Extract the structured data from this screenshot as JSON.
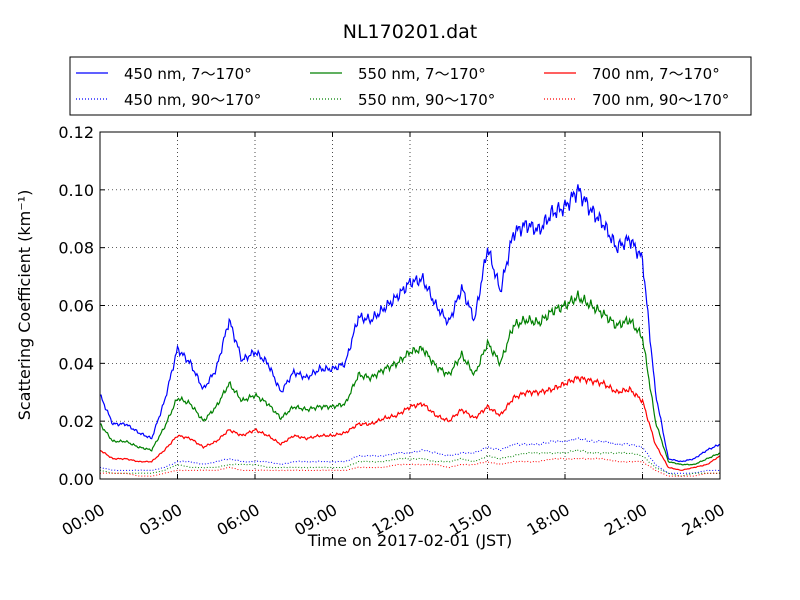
{
  "chart_data": {
    "type": "line",
    "title": "NL170201.dat",
    "xlabel": "Time on 2017-02-01 (JST)",
    "ylabel": "Scattering Coefficient (km⁻¹)",
    "xlim": [
      0,
      24
    ],
    "ylim": [
      0,
      0.12
    ],
    "x_ticks": [
      "00:00",
      "03:00",
      "06:00",
      "09:00",
      "12:00",
      "15:00",
      "18:00",
      "21:00",
      "24:00"
    ],
    "y_ticks": [
      "0.00",
      "0.02",
      "0.04",
      "0.06",
      "0.08",
      "0.10",
      "0.12"
    ],
    "grid": true,
    "legend_position": "top",
    "x_unit": "hours",
    "x": [
      0,
      0.5,
      1,
      1.5,
      2,
      2.5,
      3,
      3.5,
      4,
      4.5,
      5,
      5.5,
      6,
      6.5,
      7,
      7.5,
      8,
      8.5,
      9,
      9.5,
      10,
      10.5,
      11,
      11.5,
      12,
      12.5,
      13,
      13.5,
      14,
      14.5,
      15,
      15.5,
      16,
      16.5,
      17,
      17.5,
      18,
      18.5,
      19,
      19.5,
      20,
      20.5,
      21,
      21.5,
      22,
      22.5,
      23,
      23.5,
      24
    ],
    "series": [
      {
        "name": "450 nm, 7～170°",
        "color": "#0000ff",
        "style": "solid",
        "values": [
          0.029,
          0.019,
          0.019,
          0.016,
          0.014,
          0.027,
          0.045,
          0.04,
          0.031,
          0.038,
          0.055,
          0.041,
          0.044,
          0.04,
          0.03,
          0.037,
          0.035,
          0.038,
          0.038,
          0.04,
          0.056,
          0.055,
          0.059,
          0.063,
          0.068,
          0.069,
          0.06,
          0.054,
          0.066,
          0.055,
          0.08,
          0.065,
          0.085,
          0.088,
          0.086,
          0.092,
          0.094,
          0.1,
          0.093,
          0.088,
          0.08,
          0.083,
          0.076,
          0.03,
          0.007,
          0.006,
          0.007,
          0.01,
          0.012
        ]
      },
      {
        "name": "450 nm, 90～170°",
        "color": "#0000ff",
        "style": "dotted",
        "values": [
          0.004,
          0.003,
          0.003,
          0.003,
          0.003,
          0.004,
          0.006,
          0.006,
          0.005,
          0.006,
          0.007,
          0.006,
          0.006,
          0.006,
          0.005,
          0.006,
          0.006,
          0.006,
          0.006,
          0.006,
          0.008,
          0.008,
          0.008,
          0.009,
          0.009,
          0.01,
          0.009,
          0.008,
          0.009,
          0.009,
          0.011,
          0.01,
          0.012,
          0.012,
          0.012,
          0.013,
          0.013,
          0.014,
          0.013,
          0.013,
          0.012,
          0.012,
          0.011,
          0.005,
          0.002,
          0.002,
          0.002,
          0.003,
          0.003
        ]
      },
      {
        "name": "550 nm, 7～170°",
        "color": "#008000",
        "style": "solid",
        "values": [
          0.019,
          0.013,
          0.013,
          0.011,
          0.01,
          0.018,
          0.028,
          0.026,
          0.02,
          0.025,
          0.033,
          0.027,
          0.029,
          0.026,
          0.021,
          0.025,
          0.024,
          0.025,
          0.025,
          0.026,
          0.036,
          0.035,
          0.038,
          0.04,
          0.044,
          0.045,
          0.039,
          0.036,
          0.043,
          0.036,
          0.047,
          0.04,
          0.053,
          0.055,
          0.054,
          0.058,
          0.06,
          0.063,
          0.06,
          0.057,
          0.053,
          0.055,
          0.049,
          0.02,
          0.006,
          0.005,
          0.005,
          0.007,
          0.009
        ]
      },
      {
        "name": "550 nm, 90～170°",
        "color": "#008000",
        "style": "dotted",
        "values": [
          0.003,
          0.002,
          0.002,
          0.002,
          0.002,
          0.003,
          0.005,
          0.004,
          0.004,
          0.004,
          0.005,
          0.005,
          0.005,
          0.004,
          0.004,
          0.004,
          0.004,
          0.004,
          0.004,
          0.004,
          0.006,
          0.006,
          0.006,
          0.007,
          0.007,
          0.007,
          0.006,
          0.006,
          0.007,
          0.006,
          0.008,
          0.007,
          0.008,
          0.009,
          0.009,
          0.009,
          0.009,
          0.01,
          0.009,
          0.009,
          0.009,
          0.009,
          0.008,
          0.004,
          0.002,
          0.001,
          0.002,
          0.002,
          0.002
        ]
      },
      {
        "name": "700 nm, 7～170°",
        "color": "#ff0000",
        "style": "solid",
        "values": [
          0.01,
          0.007,
          0.007,
          0.006,
          0.006,
          0.01,
          0.015,
          0.014,
          0.011,
          0.013,
          0.017,
          0.015,
          0.017,
          0.015,
          0.012,
          0.015,
          0.014,
          0.015,
          0.015,
          0.016,
          0.019,
          0.019,
          0.021,
          0.022,
          0.025,
          0.026,
          0.022,
          0.02,
          0.024,
          0.021,
          0.025,
          0.022,
          0.028,
          0.03,
          0.03,
          0.031,
          0.033,
          0.035,
          0.034,
          0.033,
          0.03,
          0.031,
          0.027,
          0.012,
          0.004,
          0.003,
          0.004,
          0.005,
          0.008
        ]
      },
      {
        "name": "700 nm, 90～170°",
        "color": "#ff0000",
        "style": "dotted",
        "values": [
          0.002,
          0.002,
          0.002,
          0.001,
          0.001,
          0.002,
          0.003,
          0.003,
          0.003,
          0.003,
          0.004,
          0.003,
          0.003,
          0.003,
          0.003,
          0.003,
          0.003,
          0.003,
          0.003,
          0.003,
          0.004,
          0.004,
          0.004,
          0.005,
          0.005,
          0.005,
          0.005,
          0.004,
          0.005,
          0.005,
          0.006,
          0.005,
          0.006,
          0.006,
          0.006,
          0.007,
          0.007,
          0.007,
          0.007,
          0.007,
          0.006,
          0.006,
          0.006,
          0.003,
          0.001,
          0.001,
          0.001,
          0.002,
          0.002
        ]
      }
    ]
  }
}
